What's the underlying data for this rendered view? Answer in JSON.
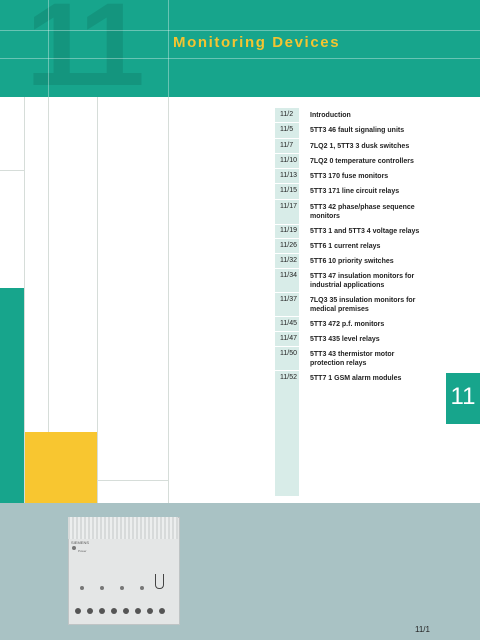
{
  "header": {
    "chapter_number": "11",
    "title": "Monitoring Devices"
  },
  "toc": [
    {
      "page": "11/2",
      "text": "Introduction"
    },
    {
      "page": "11/5",
      "text": "5TT3 46 fault signaling units"
    },
    {
      "page": "11/7",
      "text": "7LQ2 1, 5TT3 3 dusk switches"
    },
    {
      "page": "11/10",
      "text": "7LQ2 0 temperature controllers"
    },
    {
      "page": "11/13",
      "text": "5TT3 170 fuse monitors"
    },
    {
      "page": "11/15",
      "text": "5TT3 171 line circuit relays"
    },
    {
      "page": "11/17",
      "text": "5TT3 42 phase/phase sequence monitors"
    },
    {
      "page": "11/19",
      "text": "5TT3 1 and 5TT3 4 voltage relays"
    },
    {
      "page": "11/26",
      "text": "5TT6 1 current relays"
    },
    {
      "page": "11/32",
      "text": "5TT6 10 priority switches"
    },
    {
      "page": "11/34",
      "text": "5TT3 47 insulation monitors for industrial applications"
    },
    {
      "page": "11/37",
      "text": "7LQ3 35 insulation monitors for medical premises"
    },
    {
      "page": "11/45",
      "text": "5TT3 472 p.f. monitors"
    },
    {
      "page": "11/47",
      "text": "5TT3 435 level relays"
    },
    {
      "page": "11/50",
      "text": "5TT3 43 thermistor motor protection relays"
    },
    {
      "page": "11/52",
      "text": "5TT7 1 GSM alarm modules"
    }
  ],
  "side_tab": "11",
  "page_number": "11/1",
  "device": {
    "brand": "SIEMENS",
    "led_label": "Power"
  },
  "colors": {
    "teal": "#17a58c",
    "yellow": "#f8c630",
    "bottom": "#a9c2c4",
    "toc_col": "#d8ece8"
  }
}
